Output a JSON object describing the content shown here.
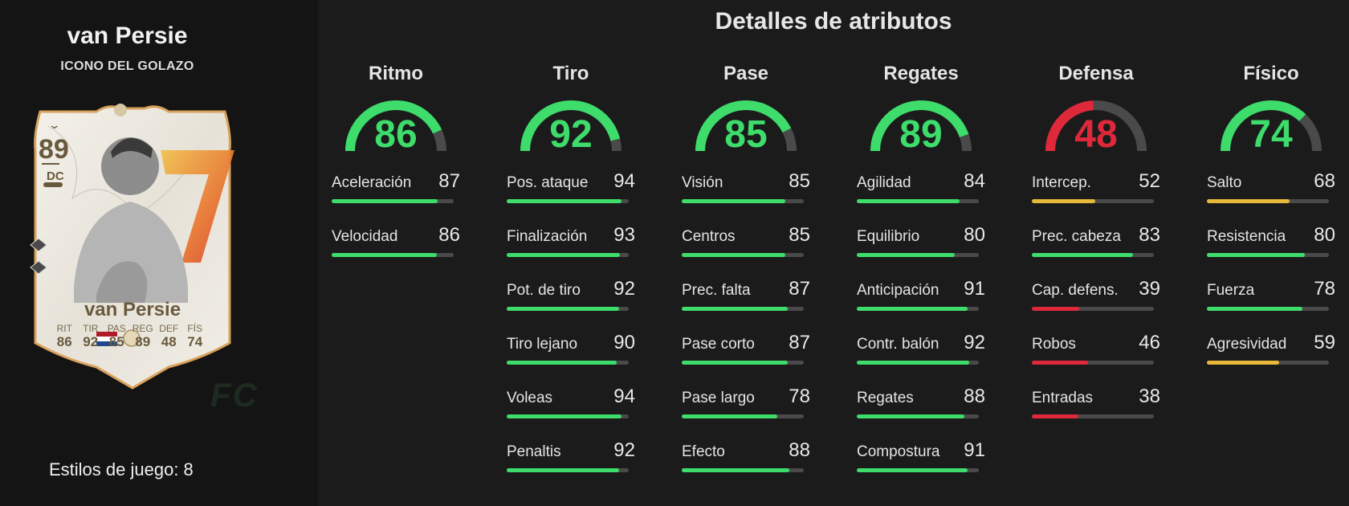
{
  "player": {
    "name": "van Persie",
    "subtitle": "ICONO DEL GOLAZO",
    "playstyles_label": "Estilos de juego: 8"
  },
  "card": {
    "rating": "89",
    "position": "DC",
    "name": "van Persie",
    "stats": [
      {
        "label": "RIT",
        "value": "86"
      },
      {
        "label": "TIR",
        "value": "92"
      },
      {
        "label": "PAS",
        "value": "85"
      },
      {
        "label": "REG",
        "value": "89"
      },
      {
        "label": "DEF",
        "value": "48"
      },
      {
        "label": "FÍS",
        "value": "74"
      }
    ]
  },
  "watermark": "FC",
  "section_title": "Detalles de atributos",
  "colors": {
    "green": "#3ddc6b",
    "yellow": "#e8b83a",
    "red": "#e0283b",
    "track": "#4a4a4a"
  },
  "categories": [
    {
      "name": "Ritmo",
      "value": 86,
      "color": "#3ddc6b",
      "stats": [
        {
          "name": "Aceleración",
          "value": 87,
          "color": "#3ddc6b"
        },
        {
          "name": "Velocidad",
          "value": 86,
          "color": "#3ddc6b"
        }
      ]
    },
    {
      "name": "Tiro",
      "value": 92,
      "color": "#3ddc6b",
      "stats": [
        {
          "name": "Pos. ataque",
          "value": 94,
          "color": "#3ddc6b"
        },
        {
          "name": "Finalización",
          "value": 93,
          "color": "#3ddc6b"
        },
        {
          "name": "Pot. de tiro",
          "value": 92,
          "color": "#3ddc6b"
        },
        {
          "name": "Tiro lejano",
          "value": 90,
          "color": "#3ddc6b"
        },
        {
          "name": "Voleas",
          "value": 94,
          "color": "#3ddc6b"
        },
        {
          "name": "Penaltis",
          "value": 92,
          "color": "#3ddc6b"
        }
      ]
    },
    {
      "name": "Pase",
      "value": 85,
      "color": "#3ddc6b",
      "stats": [
        {
          "name": "Visión",
          "value": 85,
          "color": "#3ddc6b"
        },
        {
          "name": "Centros",
          "value": 85,
          "color": "#3ddc6b"
        },
        {
          "name": "Prec. falta",
          "value": 87,
          "color": "#3ddc6b"
        },
        {
          "name": "Pase corto",
          "value": 87,
          "color": "#3ddc6b"
        },
        {
          "name": "Pase largo",
          "value": 78,
          "color": "#3ddc6b"
        },
        {
          "name": "Efecto",
          "value": 88,
          "color": "#3ddc6b"
        }
      ]
    },
    {
      "name": "Regates",
      "value": 89,
      "color": "#3ddc6b",
      "stats": [
        {
          "name": "Agilidad",
          "value": 84,
          "color": "#3ddc6b"
        },
        {
          "name": "Equilibrio",
          "value": 80,
          "color": "#3ddc6b"
        },
        {
          "name": "Anticipación",
          "value": 91,
          "color": "#3ddc6b"
        },
        {
          "name": "Contr. balón",
          "value": 92,
          "color": "#3ddc6b"
        },
        {
          "name": "Regates",
          "value": 88,
          "color": "#3ddc6b"
        },
        {
          "name": "Compostura",
          "value": 91,
          "color": "#3ddc6b"
        }
      ]
    },
    {
      "name": "Defensa",
      "value": 48,
      "color": "#e0283b",
      "stats": [
        {
          "name": "Intercep.",
          "value": 52,
          "color": "#e8b83a"
        },
        {
          "name": "Prec. cabeza",
          "value": 83,
          "color": "#3ddc6b"
        },
        {
          "name": "Cap. defens.",
          "value": 39,
          "color": "#e0283b"
        },
        {
          "name": "Robos",
          "value": 46,
          "color": "#e0283b"
        },
        {
          "name": "Entradas",
          "value": 38,
          "color": "#e0283b"
        }
      ]
    },
    {
      "name": "Físico",
      "value": 74,
      "color": "#3ddc6b",
      "stats": [
        {
          "name": "Salto",
          "value": 68,
          "color": "#e8b83a"
        },
        {
          "name": "Resistencia",
          "value": 80,
          "color": "#3ddc6b"
        },
        {
          "name": "Fuerza",
          "value": 78,
          "color": "#3ddc6b"
        },
        {
          "name": "Agresividad",
          "value": 59,
          "color": "#e8b83a"
        }
      ]
    }
  ]
}
